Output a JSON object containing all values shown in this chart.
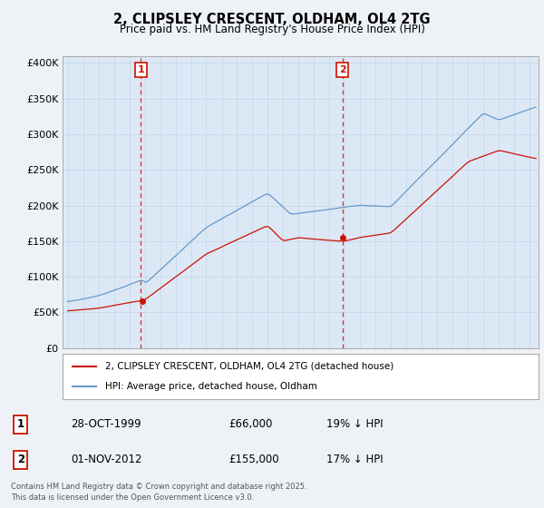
{
  "title_line1": "2, CLIPSLEY CRESCENT, OLDHAM, OL4 2TG",
  "title_line2": "Price paid vs. HM Land Registry's House Price Index (HPI)",
  "background_color": "#eef2f7",
  "plot_background": "#dce8f5",
  "red_line_color": "#cc1100",
  "blue_line_color": "#6699cc",
  "vline_color": "#cc1100",
  "legend_label_red": "2, CLIPSLEY CRESCENT, OLDHAM, OL4 2TG (detached house)",
  "legend_label_blue": "HPI: Average price, detached house, Oldham",
  "sale1_date": "28-OCT-1999",
  "sale1_price": "£66,000",
  "sale1_hpi": "19% ↓ HPI",
  "sale2_date": "01-NOV-2012",
  "sale2_price": "£155,000",
  "sale2_hpi": "17% ↓ HPI",
  "footer_text": "Contains HM Land Registry data © Crown copyright and database right 2025.\nThis data is licensed under the Open Government Licence v3.0.",
  "yticks": [
    0,
    50000,
    100000,
    150000,
    200000,
    250000,
    300000,
    350000,
    400000
  ],
  "ytick_labels": [
    "£0",
    "£50K",
    "£100K",
    "£150K",
    "£200K",
    "£250K",
    "£300K",
    "£350K",
    "£400K"
  ],
  "sale1_year": 1999.83,
  "sale2_year": 2012.84,
  "sale1_price_val": 66000,
  "sale2_price_val": 155000
}
